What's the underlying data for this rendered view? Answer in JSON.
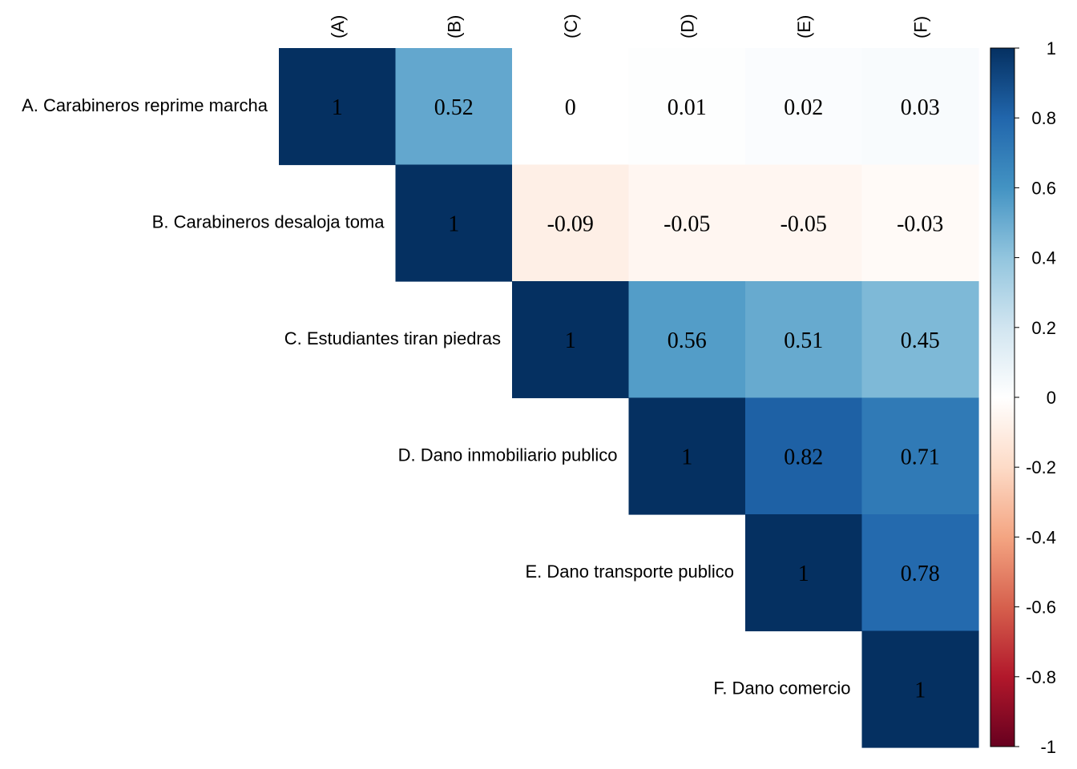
{
  "chart_data": {
    "type": "heatmap",
    "row_labels": [
      "A. Carabineros reprime marcha",
      "B. Carabineros desaloja toma",
      "C. Estudiantes tiran piedras",
      "D. Dano inmobiliario publico",
      "E. Dano transporte publico",
      "F. Dano comercio"
    ],
    "col_labels": [
      "(A)",
      "(B)",
      "(C)",
      "(D)",
      "(E)",
      "(F)"
    ],
    "cells": [
      {
        "row": 0,
        "col": 0,
        "value": 1,
        "label": "1"
      },
      {
        "row": 0,
        "col": 1,
        "value": 0.52,
        "label": "0.52"
      },
      {
        "row": 0,
        "col": 2,
        "value": 0,
        "label": "0"
      },
      {
        "row": 0,
        "col": 3,
        "value": 0.01,
        "label": "0.01"
      },
      {
        "row": 0,
        "col": 4,
        "value": 0.02,
        "label": "0.02"
      },
      {
        "row": 0,
        "col": 5,
        "value": 0.03,
        "label": "0.03"
      },
      {
        "row": 1,
        "col": 1,
        "value": 1,
        "label": "1"
      },
      {
        "row": 1,
        "col": 2,
        "value": -0.09,
        "label": "-0.09"
      },
      {
        "row": 1,
        "col": 3,
        "value": -0.05,
        "label": "-0.05"
      },
      {
        "row": 1,
        "col": 4,
        "value": -0.05,
        "label": "-0.05"
      },
      {
        "row": 1,
        "col": 5,
        "value": -0.03,
        "label": "-0.03"
      },
      {
        "row": 2,
        "col": 2,
        "value": 1,
        "label": "1"
      },
      {
        "row": 2,
        "col": 3,
        "value": 0.56,
        "label": "0.56"
      },
      {
        "row": 2,
        "col": 4,
        "value": 0.51,
        "label": "0.51"
      },
      {
        "row": 2,
        "col": 5,
        "value": 0.45,
        "label": "0.45"
      },
      {
        "row": 3,
        "col": 3,
        "value": 1,
        "label": "1"
      },
      {
        "row": 3,
        "col": 4,
        "value": 0.82,
        "label": "0.82"
      },
      {
        "row": 3,
        "col": 5,
        "value": 0.71,
        "label": "0.71"
      },
      {
        "row": 4,
        "col": 4,
        "value": 1,
        "label": "1"
      },
      {
        "row": 4,
        "col": 5,
        "value": 0.78,
        "label": "0.78"
      },
      {
        "row": 5,
        "col": 5,
        "value": 1,
        "label": "1"
      }
    ],
    "colorbar": {
      "ticks": [
        "1",
        "0.8",
        "0.6",
        "0.4",
        "0.2",
        "0",
        "-0.2",
        "-0.4",
        "-0.6",
        "-0.8",
        "-1"
      ],
      "range": [
        -1,
        1
      ]
    },
    "palette": [
      "#67001F",
      "#B2182B",
      "#D6604D",
      "#F4A582",
      "#FDDBC7",
      "#FFFFFF",
      "#D1E5F0",
      "#92C5DE",
      "#4393C3",
      "#2166AC",
      "#053061"
    ]
  }
}
